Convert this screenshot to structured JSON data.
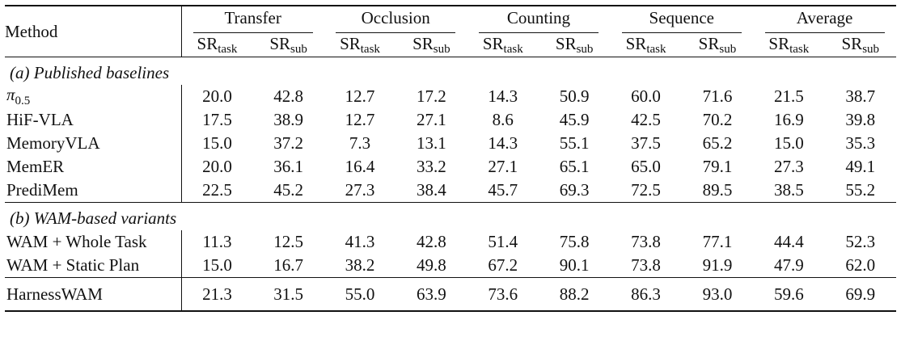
{
  "header": {
    "method": "Method",
    "groups": [
      "Transfer",
      "Occlusion",
      "Counting",
      "Sequence",
      "Average"
    ],
    "sub_main": "SR",
    "sub_task": "task",
    "sub_sub": "sub"
  },
  "sections": [
    {
      "label": "(a) Published baselines",
      "rows": [
        {
          "method": "π",
          "method_sub": "0.5",
          "values": [
            "20.0",
            "42.8",
            "12.7",
            "17.2",
            "14.3",
            "50.9",
            "60.0",
            "71.6",
            "21.5",
            "38.7"
          ],
          "bold": []
        },
        {
          "method": "HiF-VLA",
          "values": [
            "17.5",
            "38.9",
            "12.7",
            "27.1",
            "8.6",
            "45.9",
            "42.5",
            "70.2",
            "16.9",
            "39.8"
          ],
          "bold": []
        },
        {
          "method": "MemoryVLA",
          "values": [
            "15.0",
            "37.2",
            "7.3",
            "13.1",
            "14.3",
            "55.1",
            "37.5",
            "65.2",
            "15.0",
            "35.3"
          ],
          "bold": []
        },
        {
          "method": "MemER",
          "values": [
            "20.0",
            "36.1",
            "16.4",
            "33.2",
            "27.1",
            "65.1",
            "65.0",
            "79.1",
            "27.3",
            "49.1"
          ],
          "bold": []
        },
        {
          "method": "PrediMem",
          "values": [
            "22.5",
            "45.2",
            "27.3",
            "38.4",
            "45.7",
            "69.3",
            "72.5",
            "89.5",
            "38.5",
            "55.2"
          ],
          "bold": [
            0,
            1
          ]
        }
      ]
    },
    {
      "label": "(b) WAM-based variants",
      "rows": [
        {
          "method": "WAM + Whole Task",
          "values": [
            "11.3",
            "12.5",
            "41.3",
            "42.8",
            "51.4",
            "75.8",
            "73.8",
            "77.1",
            "44.4",
            "52.3"
          ],
          "bold": []
        },
        {
          "method": "WAM + Static Plan",
          "values": [
            "15.0",
            "16.7",
            "38.2",
            "49.8",
            "67.2",
            "90.1",
            "73.8",
            "91.9",
            "47.9",
            "62.0"
          ],
          "bold": [
            5
          ]
        }
      ]
    }
  ],
  "final_row": {
    "method": "HarnessWAM",
    "values": [
      "21.3",
      "31.5",
      "55.0",
      "63.9",
      "73.6",
      "88.2",
      "86.3",
      "93.0",
      "59.6",
      "69.9"
    ],
    "bold": [
      2,
      3,
      4,
      6,
      7,
      8,
      9
    ]
  }
}
